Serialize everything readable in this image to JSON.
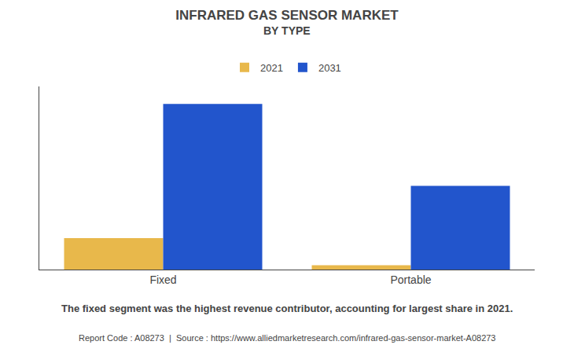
{
  "chart_data": {
    "type": "bar",
    "title": "INFRARED GAS SENSOR MARKET",
    "subtitle": "BY TYPE",
    "categories": [
      "Fixed",
      "Portable"
    ],
    "series": [
      {
        "name": "2021",
        "color": "#E8B84B",
        "values": [
          18,
          2.5
        ]
      },
      {
        "name": "2031",
        "color": "#2255CC",
        "values": [
          95,
          48
        ]
      }
    ],
    "ylim": [
      0,
      105
    ],
    "yticks": [],
    "grid": false,
    "legend": "top",
    "tick_labels": "x",
    "annotations": [
      "The fixed segment was the highest revenue contributor, accounting for largest share in 2021.",
      "Report Code : A08273  |  Source : https://www.alliedmarketresearch.com/infrared-gas-sensor-market-A08273"
    ]
  }
}
